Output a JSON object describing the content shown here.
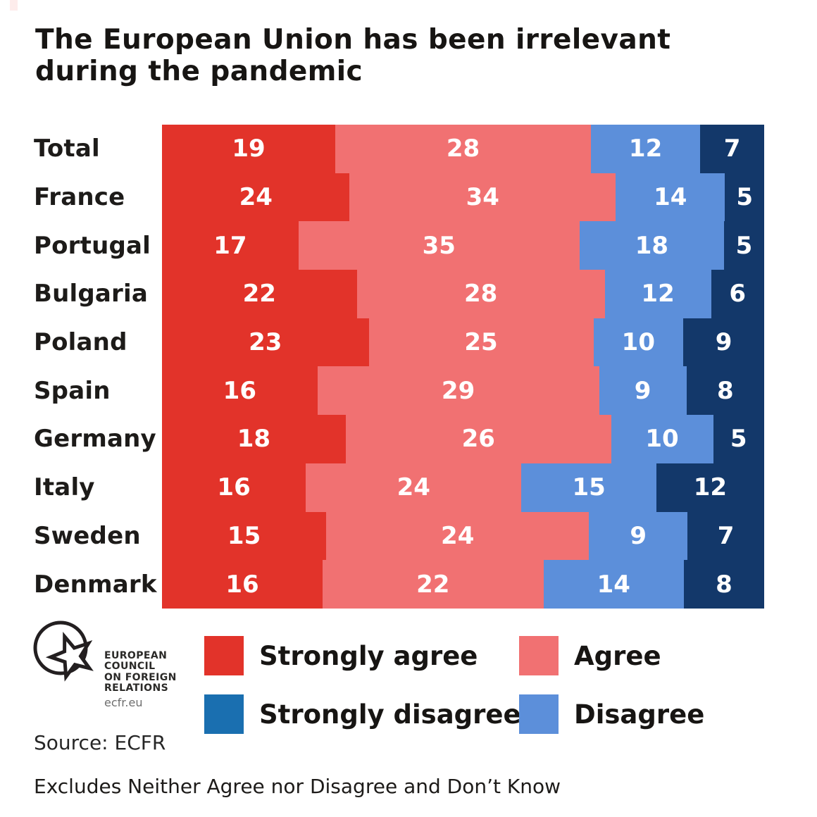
{
  "title": {
    "line1": "The European Union has been irrelevant",
    "line2": "during the pandemic"
  },
  "chart_data": {
    "type": "bar",
    "subtype": "horizontal-stacked",
    "normalized_per_row": true,
    "categories": [
      "Total",
      "France",
      "Portugal",
      "Bulgaria",
      "Poland",
      "Spain",
      "Germany",
      "Italy",
      "Sweden",
      "Denmark"
    ],
    "series": [
      {
        "name": "Strongly agree",
        "color": "#e2332a",
        "values": [
          19,
          24,
          17,
          22,
          23,
          16,
          18,
          16,
          15,
          16
        ]
      },
      {
        "name": "Agree",
        "color": "#f17172",
        "values": [
          28,
          34,
          35,
          28,
          25,
          29,
          26,
          24,
          24,
          22
        ]
      },
      {
        "name": "Disagree",
        "color": "#5c8fda",
        "values": [
          12,
          14,
          18,
          12,
          10,
          9,
          10,
          15,
          9,
          14
        ]
      },
      {
        "name": "Strongly disagree",
        "color": "#13386a",
        "values": [
          7,
          5,
          5,
          6,
          9,
          8,
          5,
          12,
          7,
          8
        ]
      }
    ],
    "title": "The European Union has been irrelevant during the pandemic",
    "xlabel": "",
    "ylabel": "",
    "legend_position": "bottom",
    "grid": false,
    "value_labels": "inside-white-bold"
  },
  "legend": {
    "items": [
      {
        "label": "Strongly agree",
        "color": "#e2332a"
      },
      {
        "label": "Agree",
        "color": "#f17172"
      },
      {
        "label": "Strongly disagree",
        "color": "#1a6fb0"
      },
      {
        "label": "Disagree",
        "color": "#5c8fda"
      }
    ]
  },
  "logo": {
    "lines": [
      "EUROPEAN",
      "COUNCIL",
      "ON FOREIGN",
      "RELATIONS"
    ],
    "url_text": "ecfr.eu"
  },
  "source": "Source: ECFR",
  "footnote": "Excludes Neither Agree nor Disagree and Don’t Know",
  "colors": {
    "background": "#ffffff",
    "text": "#171513",
    "strongly_agree": "#e2332a",
    "agree": "#f17172",
    "disagree": "#5c8fda",
    "strongly_disagree_bar": "#13386a",
    "strongly_disagree_legend": "#1a6fb0"
  }
}
